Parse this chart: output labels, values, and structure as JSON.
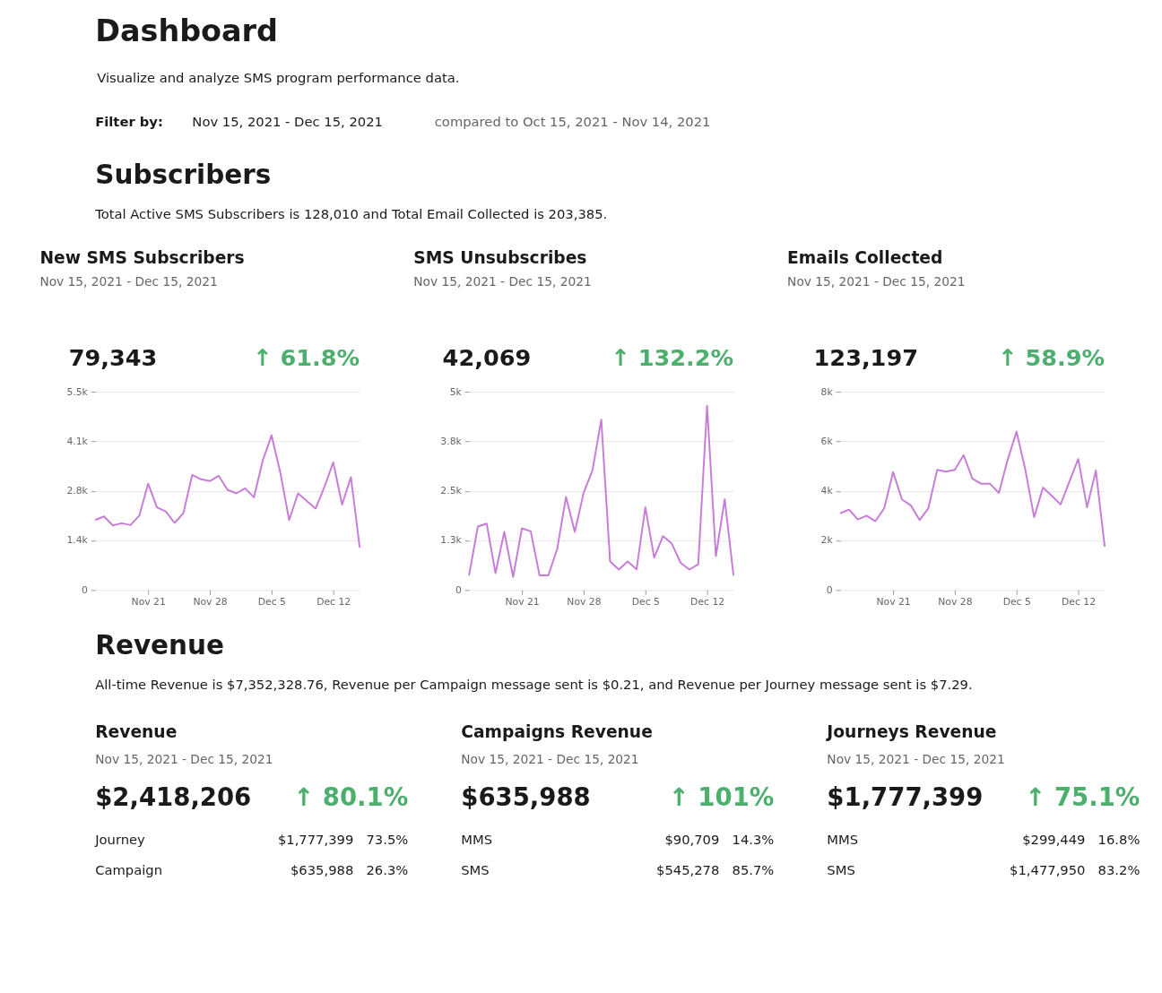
{
  "chart_data": [
    {
      "type": "other",
      "title": "Dashboard",
      "subtitle": "Visualize and analyze SMS program performance data.",
      "annotations": [
        "Filter by:",
        "Nov 15, 2021 - Dec 15, 2021",
        "compared to Oct 15, 2021 - Nov 14, 2021"
      ]
    },
    {
      "type": "other",
      "title": "Subscribers",
      "subtitle": "Total Active SMS Subscribers is 128,010 and Total Email Collected is 203,385."
    },
    {
      "type": "line",
      "title": "New SMS Subscribers",
      "subtitle": "Nov 15, 2021 - Dec 15, 2021",
      "annotations": [
        "79,343",
        "↑ 61.8%"
      ],
      "grid": "y",
      "x": [
        "2021-11-15",
        "2021-11-16",
        "2021-11-17",
        "2021-11-18",
        "2021-11-19",
        "2021-11-20",
        "2021-11-21",
        "2021-11-22",
        "2021-11-23",
        "2021-11-24",
        "2021-11-25",
        "2021-11-26",
        "2021-11-27",
        "2021-11-28",
        "2021-11-29",
        "2021-11-30",
        "2021-12-01",
        "2021-12-02",
        "2021-12-03",
        "2021-12-04",
        "2021-12-05",
        "2021-12-06",
        "2021-12-07",
        "2021-12-08",
        "2021-12-09",
        "2021-12-10",
        "2021-12-11",
        "2021-12-12",
        "2021-12-13",
        "2021-12-14",
        "2021-12-15"
      ],
      "xlim": [
        "2021-11-15",
        "2021-12-15"
      ],
      "xticks": [
        {
          "value": "2021-11-21",
          "label": "Nov 21"
        },
        {
          "value": "2021-11-28",
          "label": "Nov 28"
        },
        {
          "value": "2021-12-05",
          "label": "Dec 5"
        },
        {
          "value": "2021-12-12",
          "label": "Dec 12"
        }
      ],
      "ylim": [
        0,
        5500
      ],
      "yticks": [
        0,
        {
          "value": 1375,
          "label": "1.4k"
        },
        {
          "value": 2750,
          "label": "2.8k"
        },
        {
          "value": 4125,
          "label": "4.1k"
        },
        {
          "value": 5500,
          "label": "5.5k"
        }
      ],
      "series": [
        {
          "color": "#c77dd7",
          "values": [
            1940,
            2040,
            1790,
            1850,
            1800,
            2060,
            2950,
            2290,
            2180,
            1860,
            2130,
            3190,
            3070,
            3020,
            3170,
            2780,
            2680,
            2820,
            2570,
            3590,
            4290,
            3250,
            1940,
            2680,
            2470,
            2260,
            2860,
            3540,
            2370,
            3130,
            1180
          ]
        }
      ]
    },
    {
      "type": "line",
      "title": "SMS Unsubscribes",
      "subtitle": "Nov 15, 2021 - Dec 15, 2021",
      "annotations": [
        "42,069",
        "↑ 132.2%"
      ],
      "grid": "y",
      "x": [
        "2021-11-15",
        "2021-11-16",
        "2021-11-17",
        "2021-11-18",
        "2021-11-19",
        "2021-11-20",
        "2021-11-21",
        "2021-11-22",
        "2021-11-23",
        "2021-11-24",
        "2021-11-25",
        "2021-11-26",
        "2021-11-27",
        "2021-11-28",
        "2021-11-29",
        "2021-11-30",
        "2021-12-01",
        "2021-12-02",
        "2021-12-03",
        "2021-12-04",
        "2021-12-05",
        "2021-12-06",
        "2021-12-07",
        "2021-12-08",
        "2021-12-09",
        "2021-12-10",
        "2021-12-11",
        "2021-12-12",
        "2021-12-13",
        "2021-12-14",
        "2021-12-15"
      ],
      "xlim": [
        "2021-11-15",
        "2021-12-15"
      ],
      "xticks": [
        {
          "value": "2021-11-21",
          "label": "Nov 21"
        },
        {
          "value": "2021-11-28",
          "label": "Nov 28"
        },
        {
          "value": "2021-12-05",
          "label": "Dec 5"
        },
        {
          "value": "2021-12-12",
          "label": "Dec 12"
        }
      ],
      "ylim": [
        0,
        5000
      ],
      "yticks": [
        0,
        {
          "value": 1250,
          "label": "1.3k"
        },
        {
          "value": 2500,
          "label": "2.5k"
        },
        {
          "value": 3750,
          "label": "3.8k"
        },
        {
          "value": 5000,
          "label": "5k"
        }
      ],
      "series": [
        {
          "color": "#c77dd7",
          "values": [
            365,
            1600,
            1675,
            425,
            1465,
            330,
            1555,
            1480,
            370,
            370,
            1035,
            2345,
            1465,
            2450,
            3015,
            4295,
            720,
            515,
            720,
            520,
            2085,
            820,
            1355,
            1170,
            685,
            515,
            650,
            4645,
            855,
            2285,
            365
          ]
        }
      ]
    },
    {
      "type": "line",
      "title": "Emails Collected",
      "subtitle": "Nov 15, 2021 - Dec 15, 2021",
      "annotations": [
        "123,197",
        "↑ 58.9%"
      ],
      "grid": "y",
      "x": [
        "2021-11-15",
        "2021-11-16",
        "2021-11-17",
        "2021-11-18",
        "2021-11-19",
        "2021-11-20",
        "2021-11-21",
        "2021-11-22",
        "2021-11-23",
        "2021-11-24",
        "2021-11-25",
        "2021-11-26",
        "2021-11-27",
        "2021-11-28",
        "2021-11-29",
        "2021-11-30",
        "2021-12-01",
        "2021-12-02",
        "2021-12-03",
        "2021-12-04",
        "2021-12-05",
        "2021-12-06",
        "2021-12-07",
        "2021-12-08",
        "2021-12-09",
        "2021-12-10",
        "2021-12-11",
        "2021-12-12",
        "2021-12-13",
        "2021-12-14",
        "2021-12-15"
      ],
      "xlim": [
        "2021-11-15",
        "2021-12-15"
      ],
      "xticks": [
        {
          "value": "2021-11-21",
          "label": "Nov 21"
        },
        {
          "value": "2021-11-28",
          "label": "Nov 28"
        },
        {
          "value": "2021-12-05",
          "label": "Dec 5"
        },
        {
          "value": "2021-12-12",
          "label": "Dec 12"
        }
      ],
      "ylim": [
        0,
        8000
      ],
      "yticks": [
        0,
        {
          "value": 2000,
          "label": "2k"
        },
        {
          "value": 4000,
          "label": "4k"
        },
        {
          "value": 6000,
          "label": "6k"
        },
        {
          "value": 8000,
          "label": "8k"
        }
      ],
      "series": [
        {
          "color": "#c77dd7",
          "values": [
            3095,
            3240,
            2845,
            3000,
            2775,
            3300,
            4760,
            3655,
            3415,
            2820,
            3300,
            4845,
            4775,
            4845,
            5440,
            4490,
            4285,
            4285,
            3915,
            5260,
            6390,
            4845,
            2940,
            4130,
            3800,
            3450,
            4370,
            5285,
            3335,
            4820,
            1750
          ]
        }
      ]
    },
    {
      "type": "other",
      "title": "Revenue",
      "subtitle": "All-time Revenue is $7,352,328.76, Revenue per Campaign message sent is $0.21, and Revenue per Journey message sent is $7.29."
    },
    {
      "type": "other",
      "title": "Revenue",
      "subtitle": "Nov 15, 2021 - Dec 15, 2021",
      "annotations": [
        "$2,418,206",
        "↑ 80.1%",
        "Journey",
        "$1,777,399",
        "73.5%",
        "Campaign",
        "$635,988",
        "26.3%"
      ]
    },
    {
      "type": "other",
      "title": "Campaigns Revenue",
      "subtitle": "Nov 15, 2021 - Dec 15, 2021",
      "annotations": [
        "$635,988",
        "↑ 101%",
        "MMS",
        "$90,709",
        "14.3%",
        "SMS",
        "$545,278",
        "85.7%"
      ]
    },
    {
      "type": "other",
      "title": "Journeys Revenue",
      "subtitle": "Nov 15, 2021 - Dec 15, 2021",
      "annotations": [
        "$1,777,399",
        "↑ 75.1%",
        "MMS",
        "$299,449",
        "16.8%",
        "SMS",
        "$1,477,950",
        "83.2%"
      ]
    }
  ]
}
